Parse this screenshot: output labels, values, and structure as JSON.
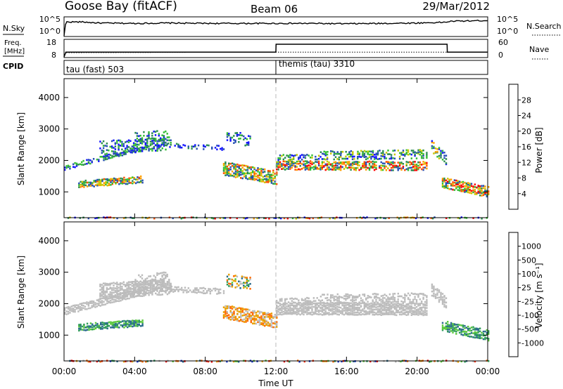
{
  "header": {
    "station": "Goose Bay (fitACF)",
    "beam": "Beam 06",
    "date": "29/Mar/2012"
  },
  "noise_panel": {
    "left_label": "N.Sky",
    "left_ticks": [
      "10^5",
      "10^0"
    ],
    "right_ticks": [
      "10^5",
      "10^0"
    ],
    "right_label": "N.Search"
  },
  "freq_panel": {
    "left_label_top": "Freq.",
    "left_label_unit": "[MHz]",
    "left_ticks": [
      "18",
      "8"
    ],
    "right_ticks": [
      "60",
      "0"
    ],
    "right_label": "Nave"
  },
  "cpid_panel": {
    "label": "CPID",
    "segments": [
      {
        "name": "tau (fast) 503",
        "start_hour": 0,
        "end_hour": 12
      },
      {
        "name": "themis (tau) 3310",
        "start_hour": 12,
        "end_hour": 24
      }
    ]
  },
  "x_axis": {
    "label": "Time UT",
    "ticks": [
      "00:00",
      "04:00",
      "08:00",
      "12:00",
      "16:00",
      "20:00",
      "00:00"
    ]
  },
  "colorbars": {
    "power": {
      "label": "Power [dB]",
      "ticks": [
        "28",
        "24",
        "20",
        "16",
        "12",
        "8",
        "4"
      ],
      "colors": [
        "#1414ff",
        "#2850b4",
        "#2a8c50",
        "#34be34",
        "#c8c800",
        "#ffa000",
        "#ff5000",
        "#ff0000"
      ]
    },
    "velocity": {
      "label": "Velocity [m s⁻¹]",
      "ticks": [
        "1000",
        "500",
        "100",
        "25",
        "-25",
        "-100",
        "-500",
        "-1000"
      ],
      "colors": [
        "#1432c8",
        "#2a6c8c",
        "#2f9c5a",
        "#5ac83c",
        "#bcbcbc",
        "#e8a000",
        "#ff6a00",
        "#ff2a00",
        "#e00000"
      ]
    }
  },
  "chart_data": [
    {
      "type": "line",
      "title": "Goose Bay (fitACF) Beam 06 29/Mar/2012",
      "series": [
        {
          "name": "N.Sky",
          "x_hours": [
            0,
            0.1,
            1,
            2,
            4,
            6,
            8,
            10,
            12,
            14,
            16,
            18,
            20,
            21.5,
            22,
            24
          ],
          "values_log10": [
            0,
            3.8,
            3.8,
            3.5,
            3.4,
            3.5,
            3.4,
            3.4,
            3.4,
            3.4,
            3.3,
            3.4,
            3.5,
            3.7,
            4.0,
            4.2
          ]
        },
        {
          "name": "N.Search",
          "values": []
        }
      ]
    },
    {
      "type": "line",
      "series": [
        {
          "name": "Freq.",
          "x_hours": [
            0,
            0.1,
            11,
            12,
            21.5,
            21.6,
            24
          ],
          "values_mhz": [
            8,
            10.5,
            10.8,
            10.8,
            10.8,
            10.8,
            10.8
          ]
        },
        {
          "name": "Nave",
          "x_hours": [
            0,
            0.1,
            12,
            12.01,
            21.7,
            21.71,
            24
          ],
          "values": [
            0,
            17,
            17,
            45,
            45,
            17,
            17
          ]
        }
      ]
    },
    {
      "type": "heatmap",
      "ylabel": "Slant Range [km]",
      "xlabel": "Time UT",
      "xlim": [
        0,
        24
      ],
      "ylim": [
        180,
        4600
      ],
      "yticks": [
        1000,
        2000,
        3000,
        4000
      ],
      "colorbar": "Power [dB]",
      "features": [
        {
          "t0": 0.0,
          "t1": 4.6,
          "r_start": 1820,
          "r_end": 2480,
          "thick": 160,
          "density": 0.55,
          "lvl": [
            0,
            3
          ]
        },
        {
          "t0": 2.0,
          "t1": 6.0,
          "r_start": 2450,
          "r_end": 2600,
          "thick": 450,
          "density": 0.45,
          "lvl": [
            0,
            3
          ]
        },
        {
          "t0": 4.0,
          "t1": 5.8,
          "r_start": 2700,
          "r_end": 2800,
          "thick": 500,
          "density": 0.35,
          "lvl": [
            0,
            3
          ]
        },
        {
          "t0": 5.0,
          "t1": 9.0,
          "r_start": 2550,
          "r_end": 2450,
          "thick": 150,
          "density": 0.3,
          "lvl": [
            0,
            2
          ]
        },
        {
          "t0": 0.8,
          "t1": 4.4,
          "r_start": 1300,
          "r_end": 1450,
          "thick": 230,
          "density": 0.85,
          "lvl": [
            1,
            6
          ]
        },
        {
          "t0": 9.0,
          "t1": 12.0,
          "r_start": 1800,
          "r_end": 1500,
          "thick": 450,
          "density": 0.75,
          "lvl": [
            1,
            6
          ]
        },
        {
          "t0": 9.2,
          "t1": 10.5,
          "r_start": 2800,
          "r_end": 2700,
          "thick": 400,
          "density": 0.35,
          "lvl": [
            0,
            3
          ]
        },
        {
          "t0": 12.0,
          "t1": 20.5,
          "r_start": 1900,
          "r_end": 1880,
          "thick": 300,
          "density": 0.75,
          "lvl": [
            1,
            7
          ]
        },
        {
          "t0": 12.0,
          "t1": 20.5,
          "r_start": 2150,
          "r_end": 2200,
          "thick": 200,
          "density": 0.5,
          "lvl": [
            0,
            4
          ]
        },
        {
          "t0": 14.5,
          "t1": 20.5,
          "r_start": 2300,
          "r_end": 2350,
          "thick": 120,
          "density": 0.5,
          "lvl": [
            1,
            4
          ]
        },
        {
          "t0": 20.8,
          "t1": 21.6,
          "r_start": 2500,
          "r_end": 2100,
          "thick": 400,
          "density": 0.55,
          "lvl": [
            0,
            5
          ]
        },
        {
          "t0": 21.4,
          "t1": 24.0,
          "r_start": 1350,
          "r_end": 1050,
          "thick": 350,
          "density": 0.8,
          "lvl": [
            1,
            7
          ]
        },
        {
          "t0": 0.0,
          "t1": 24.0,
          "r_start": 240,
          "r_end": 240,
          "thick": 80,
          "density": 0.5,
          "lvl": [
            0,
            7
          ]
        }
      ]
    },
    {
      "type": "heatmap",
      "ylabel": "Slant Range [km]",
      "xlabel": "Time UT",
      "xlim": [
        0,
        24
      ],
      "ylim": [
        180,
        4600
      ],
      "yticks": [
        1000,
        2000,
        3000,
        4000
      ],
      "colorbar": "Velocity [m s⁻¹]",
      "features": [
        {
          "t0": 0.0,
          "t1": 4.6,
          "r_start": 1820,
          "r_end": 2480,
          "thick": 260,
          "density": 0.9,
          "lvl": [
            4,
            4
          ]
        },
        {
          "t0": 2.0,
          "t1": 6.0,
          "r_start": 2450,
          "r_end": 2600,
          "thick": 500,
          "density": 0.8,
          "lvl": [
            4,
            4
          ]
        },
        {
          "t0": 4.0,
          "t1": 5.8,
          "r_start": 2700,
          "r_end": 2800,
          "thick": 550,
          "density": 0.45,
          "lvl": [
            4,
            4
          ]
        },
        {
          "t0": 5.0,
          "t1": 9.0,
          "r_start": 2550,
          "r_end": 2450,
          "thick": 200,
          "density": 0.6,
          "lvl": [
            4,
            4
          ]
        },
        {
          "t0": 0.8,
          "t1": 4.4,
          "r_start": 1300,
          "r_end": 1450,
          "thick": 230,
          "density": 0.9,
          "lvl": [
            1,
            3
          ]
        },
        {
          "t0": 9.0,
          "t1": 12.0,
          "r_start": 1800,
          "r_end": 1500,
          "thick": 450,
          "density": 0.8,
          "lvl": [
            4,
            6
          ]
        },
        {
          "t0": 9.2,
          "t1": 10.5,
          "r_start": 2800,
          "r_end": 2700,
          "thick": 400,
          "density": 0.4,
          "lvl": [
            1,
            6
          ]
        },
        {
          "t0": 12.0,
          "t1": 20.5,
          "r_start": 1900,
          "r_end": 1880,
          "thick": 400,
          "density": 0.9,
          "lvl": [
            4,
            4
          ]
        },
        {
          "t0": 12.0,
          "t1": 20.5,
          "r_start": 2150,
          "r_end": 2200,
          "thick": 200,
          "density": 0.6,
          "lvl": [
            4,
            4
          ]
        },
        {
          "t0": 14.5,
          "t1": 20.5,
          "r_start": 2300,
          "r_end": 2350,
          "thick": 120,
          "density": 0.5,
          "lvl": [
            4,
            4
          ]
        },
        {
          "t0": 20.8,
          "t1": 21.6,
          "r_start": 2500,
          "r_end": 2100,
          "thick": 400,
          "density": 0.6,
          "lvl": [
            4,
            4
          ]
        },
        {
          "t0": 21.4,
          "t1": 24.0,
          "r_start": 1350,
          "r_end": 1050,
          "thick": 350,
          "density": 0.8,
          "lvl": [
            1,
            3
          ]
        },
        {
          "t0": 0.0,
          "t1": 24.0,
          "r_start": 240,
          "r_end": 240,
          "thick": 80,
          "density": 0.5,
          "lvl": [
            0,
            8
          ]
        }
      ]
    }
  ]
}
